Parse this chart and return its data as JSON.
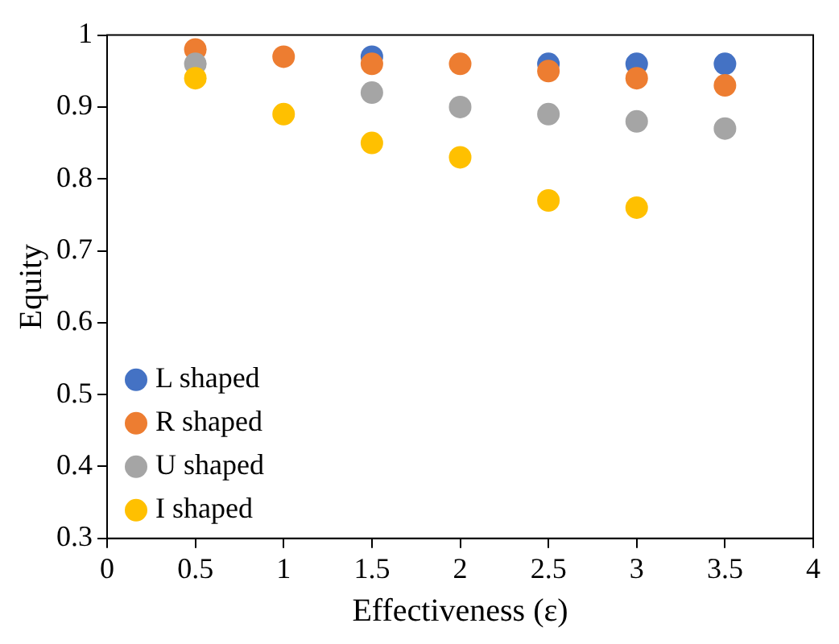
{
  "chart_data": {
    "type": "scatter",
    "xlabel": "Effectiveness (ε)",
    "ylabel": "Equity",
    "x": [
      0.5,
      1,
      1.5,
      2,
      2.5,
      3,
      3.5
    ],
    "series": [
      {
        "name": "L shaped",
        "color": "#4472c4",
        "values": [
          null,
          null,
          0.97,
          null,
          0.96,
          0.96,
          0.96
        ]
      },
      {
        "name": "R shaped",
        "color": "#ed7d31",
        "values": [
          0.98,
          0.97,
          0.96,
          0.96,
          0.95,
          0.94,
          0.93
        ]
      },
      {
        "name": "U shaped",
        "color": "#a5a5a5",
        "values": [
          0.96,
          null,
          0.92,
          0.9,
          0.89,
          0.88,
          0.87
        ]
      },
      {
        "name": "I shaped",
        "color": "#ffc000",
        "values": [
          0.94,
          0.89,
          0.85,
          0.83,
          0.77,
          0.76,
          null
        ]
      }
    ],
    "xlim": [
      0,
      4
    ],
    "xticks": [
      0,
      0.5,
      1,
      1.5,
      2,
      2.5,
      3,
      3.5,
      4
    ],
    "ylim": [
      0.3,
      1
    ],
    "yticks": [
      0.3,
      0.4,
      0.5,
      0.6,
      0.7,
      0.8,
      0.9,
      1
    ],
    "grid": false,
    "legend": "bottom left",
    "marker": "circle"
  }
}
